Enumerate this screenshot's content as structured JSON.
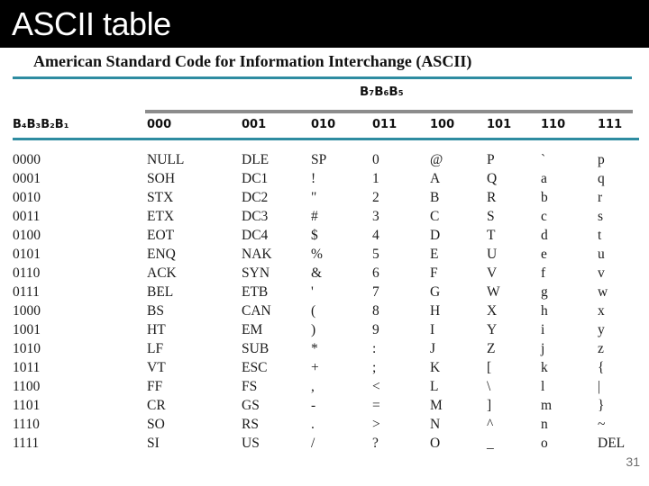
{
  "slide": {
    "title": "ASCII table",
    "page_number": "31"
  },
  "table": {
    "title": "American Standard Code for Information Interchange (ASCII)",
    "group_header": "B₇B₆B₅",
    "row_header": "B₄B₃B₂B₁",
    "col_headers": [
      "000",
      "001",
      "010",
      "011",
      "100",
      "101",
      "110",
      "111"
    ],
    "rows": [
      [
        "0000",
        "NULL",
        "DLE",
        "SP",
        "0",
        "@",
        "P",
        "`",
        "p"
      ],
      [
        "0001",
        "SOH",
        "DC1",
        "!",
        "1",
        "A",
        "Q",
        "a",
        "q"
      ],
      [
        "0010",
        "STX",
        "DC2",
        "\"",
        "2",
        "B",
        "R",
        "b",
        "r"
      ],
      [
        "0011",
        "ETX",
        "DC3",
        "#",
        "3",
        "C",
        "S",
        "c",
        "s"
      ],
      [
        "0100",
        "EOT",
        "DC4",
        "$",
        "4",
        "D",
        "T",
        "d",
        "t"
      ],
      [
        "0101",
        "ENQ",
        "NAK",
        "%",
        "5",
        "E",
        "U",
        "e",
        "u"
      ],
      [
        "0110",
        "ACK",
        "SYN",
        "&",
        "6",
        "F",
        "V",
        "f",
        "v"
      ],
      [
        "0111",
        "BEL",
        "ETB",
        "'",
        "7",
        "G",
        "W",
        "g",
        "w"
      ],
      [
        "1000",
        "BS",
        "CAN",
        "(",
        "8",
        "H",
        "X",
        "h",
        "x"
      ],
      [
        "1001",
        "HT",
        "EM",
        ")",
        "9",
        "I",
        "Y",
        "i",
        "y"
      ],
      [
        "1010",
        "LF",
        "SUB",
        "*",
        ":",
        "J",
        "Z",
        "j",
        "z"
      ],
      [
        "1011",
        "VT",
        "ESC",
        "+",
        ";",
        "K",
        "[",
        "k",
        "{"
      ],
      [
        "1100",
        "FF",
        "FS",
        ",",
        "<",
        "L",
        "\\",
        "l",
        "|"
      ],
      [
        "1101",
        "CR",
        "GS",
        "-",
        "=",
        "M",
        "]",
        "m",
        "}"
      ],
      [
        "1110",
        "SO",
        "RS",
        ".",
        ">",
        "N",
        "^",
        "n",
        "~"
      ],
      [
        "1111",
        "SI",
        "US",
        "/",
        "?",
        "O",
        "_",
        "o",
        "DEL"
      ]
    ]
  },
  "colors": {
    "titlebar_bg": "#000000",
    "title_text": "#ffffff",
    "accent_teal": "#2e8ca1",
    "rule_gray": "#8c8c8c",
    "body_text": "#1b1b1b",
    "page_number_gray": "#6e6e6e"
  }
}
